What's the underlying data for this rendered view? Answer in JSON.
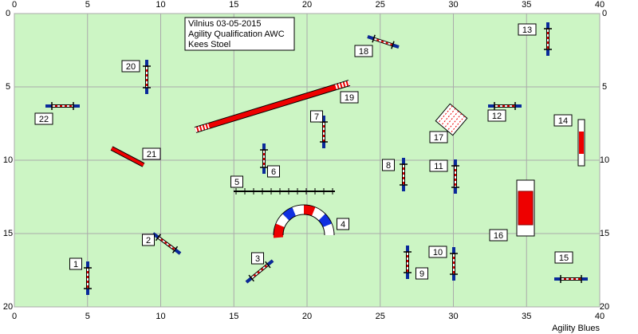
{
  "title_box": {
    "lines": [
      "Vilnius 03-05-2015",
      "Agility Qualification AWC",
      "Kees Stoel"
    ]
  },
  "axes": {
    "x_ticks": [
      0,
      5,
      10,
      15,
      20,
      25,
      30,
      35,
      40
    ],
    "y_ticks": [
      0,
      5,
      10,
      15,
      20
    ]
  },
  "obstacles": [
    {
      "label": "1"
    },
    {
      "label": "2"
    },
    {
      "label": "3"
    },
    {
      "label": "4"
    },
    {
      "label": "5"
    },
    {
      "label": "6"
    },
    {
      "label": "7"
    },
    {
      "label": "8"
    },
    {
      "label": "9"
    },
    {
      "label": "10"
    },
    {
      "label": "11"
    },
    {
      "label": "12"
    },
    {
      "label": "13"
    },
    {
      "label": "14"
    },
    {
      "label": "15"
    },
    {
      "label": "16"
    },
    {
      "label": "17"
    },
    {
      "label": "18"
    },
    {
      "label": "19"
    },
    {
      "label": "20"
    },
    {
      "label": "21"
    },
    {
      "label": "22"
    }
  ],
  "footer": "Agility Blues"
}
